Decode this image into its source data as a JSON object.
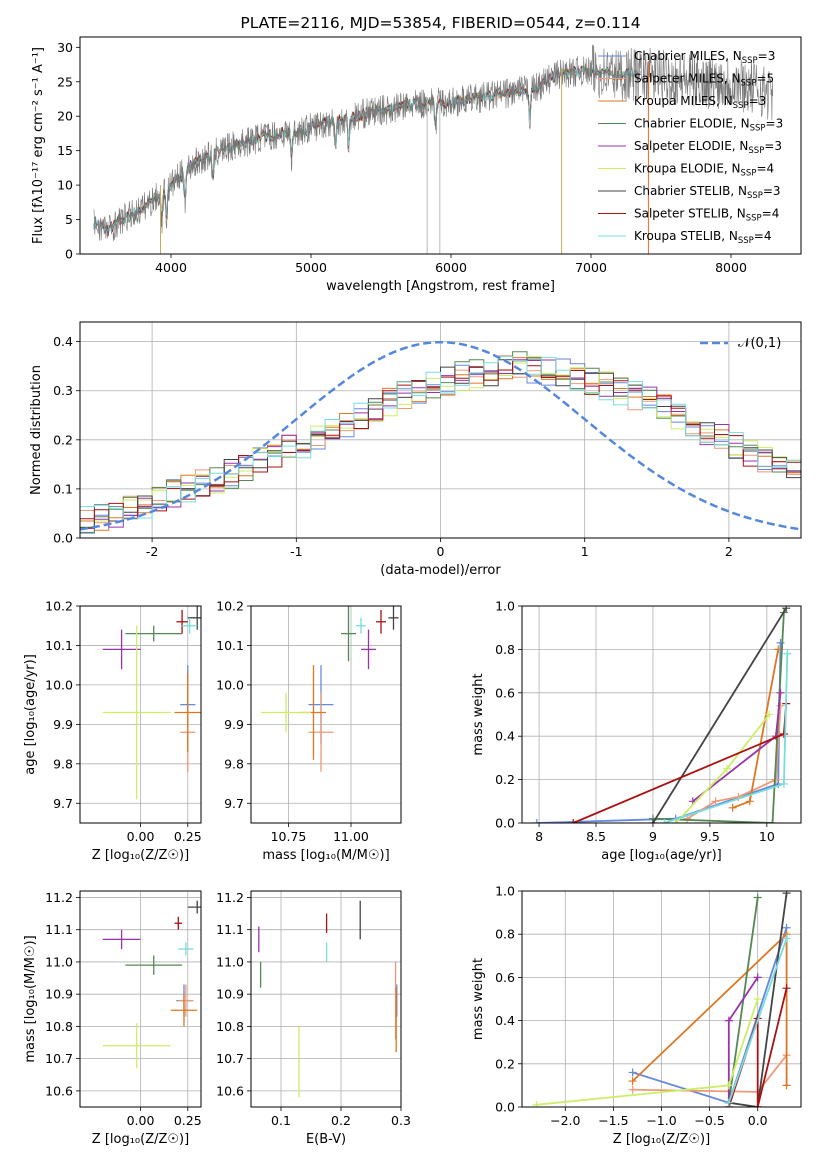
{
  "chart_data": [
    {
      "type": "line",
      "title": "PLATE=2116, MJD=53854, FIBERID=0544, z=0.114",
      "xlabel": "wavelength [Angstrom, rest frame]",
      "ylabel": "Flux [fλ10⁻¹⁷ erg cm⁻² s⁻¹ A⁻¹]",
      "xlim": [
        3350,
        8500
      ],
      "ylim": [
        0,
        31.5
      ],
      "xticks": [
        4000,
        5000,
        6000,
        7000,
        8000
      ],
      "yticks": [
        0,
        5,
        10,
        15,
        20,
        25,
        30
      ],
      "grid": false,
      "legend": "top-right",
      "continuum": {
        "x": [
          3450,
          3550,
          3650,
          3750,
          3850,
          3950,
          4050,
          4150,
          4250,
          4350,
          4500,
          4650,
          4800,
          4950,
          5100,
          5250,
          5400,
          5550,
          5700,
          5850,
          6000,
          6150,
          6300,
          6450,
          6600,
          6750,
          6900,
          7050,
          7200,
          7400,
          7600,
          7800,
          8000,
          8200,
          8300
        ],
        "y": [
          4.5,
          3.5,
          5.0,
          6.0,
          7.5,
          9.0,
          11.0,
          13.0,
          14.0,
          15.0,
          16.0,
          17.0,
          17.5,
          18.0,
          19.0,
          19.5,
          20.5,
          21.0,
          21.5,
          22.0,
          22.0,
          22.5,
          23.0,
          23.5,
          24.0,
          26.0,
          26.5,
          26.5,
          26.0,
          26.0,
          25.5,
          25.0,
          25.0,
          24.0,
          23.0
        ]
      },
      "absorption_dips": [
        3934,
        3969,
        4101,
        4300,
        4861,
        5175,
        5269,
        5890,
        6563
      ],
      "series": [
        {
          "name": "Chabrier MILES, NSSP=3",
          "color": "#6688dd"
        },
        {
          "name": "Salpeter MILES, NSSP=5",
          "color": "#ee9977"
        },
        {
          "name": "Kroupa MILES, NSSP=3",
          "color": "#dd7722"
        },
        {
          "name": "Chabrier ELODIE, NSSP=3",
          "color": "#558855"
        },
        {
          "name": "Salpeter ELODIE, NSSP=3",
          "color": "#9933aa"
        },
        {
          "name": "Kroupa ELODIE, NSSP=4",
          "color": "#ccee66"
        },
        {
          "name": "Chabrier STELIB, NSSP=3",
          "color": "#444444"
        },
        {
          "name": "Salpeter STELIB, NSSP=4",
          "color": "#aa1111"
        },
        {
          "name": "Kroupa STELIB, NSSP=4",
          "color": "#77dddd"
        }
      ],
      "data_color": "#777777"
    },
    {
      "type": "line",
      "xlabel": "(data-model)/error",
      "ylabel": "Normed distribution",
      "xlim": [
        -2.5,
        2.5
      ],
      "ylim": [
        0,
        0.44
      ],
      "xticks": [
        -2,
        -1,
        0,
        1,
        2
      ],
      "yticks": [
        0.0,
        0.1,
        0.2,
        0.3,
        0.4
      ],
      "grid": true,
      "legend": "top-right",
      "gaussian_label": "𝒩(0,1)",
      "gaussian_color": "#5588dd",
      "bin_width": 0.1,
      "bins_start": -2.5,
      "envelope": [
        0.04,
        0.045,
        0.05,
        0.06,
        0.07,
        0.08,
        0.09,
        0.1,
        0.11,
        0.12,
        0.13,
        0.145,
        0.16,
        0.17,
        0.18,
        0.19,
        0.2,
        0.215,
        0.23,
        0.245,
        0.26,
        0.275,
        0.29,
        0.3,
        0.31,
        0.32,
        0.33,
        0.335,
        0.34,
        0.345,
        0.35,
        0.345,
        0.34,
        0.335,
        0.33,
        0.32,
        0.31,
        0.3,
        0.29,
        0.28,
        0.265,
        0.25,
        0.235,
        0.22,
        0.205,
        0.19,
        0.175,
        0.16,
        0.15,
        0.14,
        0.13,
        0.12,
        0.11,
        0.105,
        0.1,
        0.095,
        0.09,
        0.085,
        0.08,
        0.075,
        0.07,
        0.065,
        0.065,
        0.07,
        0.08,
        0.085,
        0.08,
        0.075,
        0.08,
        0.085,
        0.09,
        0.085,
        0.08,
        0.08,
        0.085,
        0.09,
        0.085,
        0.08,
        0.075,
        0.07
      ]
    },
    {
      "type": "scatter",
      "xlabel": "Z [log₁₀(Z/Z☉)]",
      "ylabel": "age  [log₁₀(age/yr)]",
      "xlim": [
        -0.32,
        0.32
      ],
      "ylim": [
        9.65,
        10.2
      ],
      "xticks": [
        0.0,
        0.25
      ],
      "xticklabels": [
        "0.00",
        "0.25"
      ],
      "yticks": [
        9.7,
        9.8,
        9.9,
        10.0,
        10.1,
        10.2
      ],
      "grid": true,
      "points": [
        {
          "color": "#6688dd",
          "x": 0.25,
          "y": 9.95,
          "xerr": 0.04,
          "yerr": 0.1
        },
        {
          "color": "#ee9977",
          "x": 0.25,
          "y": 9.88,
          "xerr": 0.04,
          "yerr": 0.1
        },
        {
          "color": "#dd7722",
          "x": 0.25,
          "y": 9.93,
          "xerr": 0.07,
          "yerr": 0.1
        },
        {
          "color": "#558855",
          "x": 0.07,
          "y": 10.13,
          "xerr": 0.15,
          "yerr": 0.02
        },
        {
          "color": "#9933aa",
          "x": -0.1,
          "y": 10.09,
          "xerr": 0.1,
          "yerr": 0.05
        },
        {
          "color": "#ccee66",
          "x": -0.02,
          "y": 9.93,
          "xerr": 0.18,
          "yerr": 0.22
        },
        {
          "color": "#444444",
          "x": 0.3,
          "y": 10.17,
          "xerr": 0.05,
          "yerr": 0.03
        },
        {
          "color": "#aa1111",
          "x": 0.22,
          "y": 10.16,
          "xerr": 0.03,
          "yerr": 0.03
        },
        {
          "color": "#77dddd",
          "x": 0.26,
          "y": 10.15,
          "xerr": 0.04,
          "yerr": 0.02
        }
      ]
    },
    {
      "type": "scatter",
      "xlabel": "mass [log₁₀(M/M☉)]",
      "ylabel": "",
      "xlim": [
        10.6,
        11.2
      ],
      "ylim": [
        9.65,
        10.2
      ],
      "xticks": [
        10.75,
        11.0
      ],
      "xticklabels": [
        "10.75",
        "11.00"
      ],
      "yticks": [
        9.7,
        9.8,
        9.9,
        10.0,
        10.1,
        10.2
      ],
      "grid": true,
      "points": [
        {
          "color": "#6688dd",
          "x": 10.88,
          "y": 9.95,
          "xerr": 0.05,
          "yerr": 0.1
        },
        {
          "color": "#ee9977",
          "x": 10.88,
          "y": 9.88,
          "xerr": 0.05,
          "yerr": 0.1
        },
        {
          "color": "#dd7722",
          "x": 10.85,
          "y": 9.93,
          "xerr": 0.05,
          "yerr": 0.12
        },
        {
          "color": "#558855",
          "x": 10.99,
          "y": 10.13,
          "xerr": 0.03,
          "yerr": 0.07
        },
        {
          "color": "#9933aa",
          "x": 11.07,
          "y": 10.09,
          "xerr": 0.03,
          "yerr": 0.05
        },
        {
          "color": "#ccee66",
          "x": 10.74,
          "y": 9.93,
          "xerr": 0.1,
          "yerr": 0.05
        },
        {
          "color": "#444444",
          "x": 11.17,
          "y": 10.17,
          "xerr": 0.02,
          "yerr": 0.03
        },
        {
          "color": "#aa1111",
          "x": 11.12,
          "y": 10.16,
          "xerr": 0.02,
          "yerr": 0.03
        },
        {
          "color": "#77dddd",
          "x": 11.04,
          "y": 10.15,
          "xerr": 0.02,
          "yerr": 0.02
        }
      ]
    },
    {
      "type": "line",
      "xlabel": "age  [log₁₀(age/yr)]",
      "ylabel": "mass weight",
      "xlim": [
        7.85,
        10.3
      ],
      "ylim": [
        0,
        1
      ],
      "xticks": [
        8.0,
        8.5,
        9.0,
        9.5,
        10.0
      ],
      "yticks": [
        0.0,
        0.2,
        0.4,
        0.6,
        0.8,
        1.0
      ],
      "grid": true,
      "series": [
        {
          "color": "#6688dd",
          "x": [
            7.98,
            9.2,
            10.1,
            10.12
          ],
          "y": [
            0.0,
            0.02,
            0.18,
            0.83
          ]
        },
        {
          "color": "#ee9977",
          "x": [
            9.3,
            9.55,
            9.75,
            10.08,
            10.12
          ],
          "y": [
            0.02,
            0.1,
            0.12,
            0.2,
            0.54
          ]
        },
        {
          "color": "#dd7722",
          "x": [
            9.7,
            9.85,
            10.1
          ],
          "y": [
            0.07,
            0.1,
            0.8
          ]
        },
        {
          "color": "#558855",
          "x": [
            9.0,
            10.05,
            10.15
          ],
          "y": [
            0.02,
            0.0,
            0.97
          ]
        },
        {
          "color": "#9933aa",
          "x": [
            9.35,
            10.08,
            10.12
          ],
          "y": [
            0.1,
            0.4,
            0.6
          ]
        },
        {
          "color": "#ccee66",
          "x": [
            9.2,
            9.65,
            10.02
          ],
          "y": [
            0.0,
            0.25,
            0.5
          ]
        },
        {
          "color": "#444444",
          "x": [
            9.0,
            10.17
          ],
          "y": [
            0.0,
            0.99
          ]
        },
        {
          "color": "#aa1111",
          "x": [
            8.3,
            10.15,
            10.17
          ],
          "y": [
            0.0,
            0.41,
            0.55
          ]
        },
        {
          "color": "#77dddd",
          "x": [
            9.1,
            10.15,
            10.18
          ],
          "y": [
            0.0,
            0.18,
            0.78
          ]
        }
      ]
    },
    {
      "type": "scatter",
      "xlabel": "Z [log₁₀(Z/Z☉)]",
      "ylabel": "mass [log₁₀(M/M☉)]",
      "xlim": [
        -0.32,
        0.32
      ],
      "ylim": [
        10.55,
        11.22
      ],
      "xticks": [
        0.0,
        0.25
      ],
      "xticklabels": [
        "0.00",
        "0.25"
      ],
      "yticks": [
        10.6,
        10.7,
        10.8,
        10.9,
        11.0,
        11.1,
        11.2
      ],
      "grid": true,
      "points": [
        {
          "color": "#6688dd",
          "x": 0.23,
          "y": 10.88,
          "xerr": 0.04,
          "yerr": 0.05
        },
        {
          "color": "#ee9977",
          "x": 0.24,
          "y": 10.88,
          "xerr": 0.04,
          "yerr": 0.05
        },
        {
          "color": "#dd7722",
          "x": 0.23,
          "y": 10.85,
          "xerr": 0.07,
          "yerr": 0.05
        },
        {
          "color": "#558855",
          "x": 0.07,
          "y": 10.99,
          "xerr": 0.15,
          "yerr": 0.03
        },
        {
          "color": "#9933aa",
          "x": -0.1,
          "y": 11.07,
          "xerr": 0.1,
          "yerr": 0.03
        },
        {
          "color": "#ccee66",
          "x": -0.02,
          "y": 10.74,
          "xerr": 0.18,
          "yerr": 0.07
        },
        {
          "color": "#444444",
          "x": 0.3,
          "y": 11.17,
          "xerr": 0.05,
          "yerr": 0.02
        },
        {
          "color": "#aa1111",
          "x": 0.2,
          "y": 11.12,
          "xerr": 0.02,
          "yerr": 0.02
        },
        {
          "color": "#77dddd",
          "x": 0.24,
          "y": 11.04,
          "xerr": 0.04,
          "yerr": 0.02
        }
      ]
    },
    {
      "type": "scatter",
      "xlabel": "E(B-V)",
      "ylabel": "",
      "xlim": [
        0.05,
        0.3
      ],
      "ylim": [
        10.55,
        11.22
      ],
      "xticks": [
        0.1,
        0.2,
        0.3
      ],
      "xticklabels": [
        "0.1",
        "0.2",
        "0.3"
      ],
      "yticks": [
        10.6,
        10.7,
        10.8,
        10.9,
        11.0,
        11.1,
        11.2
      ],
      "grid": true,
      "points": [
        {
          "color": "#6688dd",
          "x": 0.293,
          "y": 10.88,
          "xerr": 0,
          "yerr": 0.05
        },
        {
          "color": "#ee9977",
          "x": 0.291,
          "y": 10.88,
          "xerr": 0,
          "yerr": 0.12
        },
        {
          "color": "#dd7722",
          "x": 0.292,
          "y": 10.82,
          "xerr": 0,
          "yerr": 0.1
        },
        {
          "color": "#558855",
          "x": 0.066,
          "y": 10.96,
          "xerr": 0,
          "yerr": 0.04
        },
        {
          "color": "#9933aa",
          "x": 0.063,
          "y": 11.07,
          "xerr": 0,
          "yerr": 0.04
        },
        {
          "color": "#ccee66",
          "x": 0.13,
          "y": 10.69,
          "xerr": 0,
          "yerr": 0.11
        },
        {
          "color": "#444444",
          "x": 0.232,
          "y": 11.13,
          "xerr": 0,
          "yerr": 0.06
        },
        {
          "color": "#aa1111",
          "x": 0.176,
          "y": 11.12,
          "xerr": 0,
          "yerr": 0.03
        },
        {
          "color": "#77dddd",
          "x": 0.176,
          "y": 11.03,
          "xerr": 0,
          "yerr": 0.03
        }
      ]
    },
    {
      "type": "line",
      "xlabel": "Z [log₁₀(Z/Z☉)]",
      "ylabel": "mass weight",
      "xlim": [
        -2.45,
        0.45
      ],
      "ylim": [
        0,
        1
      ],
      "xticks": [
        -2.0,
        -1.5,
        -1.0,
        -0.5,
        0.0
      ],
      "xticklabels": [
        "−2.0",
        "−1.5",
        "−1.0",
        "−0.5",
        "0.0"
      ],
      "yticks": [
        0.0,
        0.2,
        0.4,
        0.6,
        0.8,
        1.0
      ],
      "grid": true,
      "series": [
        {
          "color": "#6688dd",
          "x": [
            -1.3,
            -0.3,
            0.3
          ],
          "y": [
            0.16,
            0.02,
            0.83
          ]
        },
        {
          "color": "#ee9977",
          "x": [
            -1.3,
            0.0,
            0.3
          ],
          "y": [
            0.08,
            0.07,
            0.24
          ]
        },
        {
          "color": "#dd7722",
          "x": [
            -1.3,
            0.3,
            0.3
          ],
          "y": [
            0.12,
            0.8,
            0.1
          ]
        },
        {
          "color": "#558855",
          "x": [
            -0.3,
            0.0
          ],
          "y": [
            0.02,
            0.97
          ]
        },
        {
          "color": "#9933aa",
          "x": [
            -0.3,
            -0.3,
            0.0
          ],
          "y": [
            0.0,
            0.4,
            0.6
          ]
        },
        {
          "color": "#ccee66",
          "x": [
            -2.3,
            -0.3,
            0.0
          ],
          "y": [
            0.01,
            0.1,
            0.5
          ]
        },
        {
          "color": "#444444",
          "x": [
            -0.3,
            0.0,
            0.3
          ],
          "y": [
            0.02,
            0.0,
            0.99
          ]
        },
        {
          "color": "#aa1111",
          "x": [
            -0.3,
            0.0,
            0.0,
            0.3
          ],
          "y": [
            0.0,
            0.41,
            0.0,
            0.55
          ]
        },
        {
          "color": "#77dddd",
          "x": [
            -0.3,
            0.3
          ],
          "y": [
            0.02,
            0.78
          ]
        }
      ]
    }
  ]
}
